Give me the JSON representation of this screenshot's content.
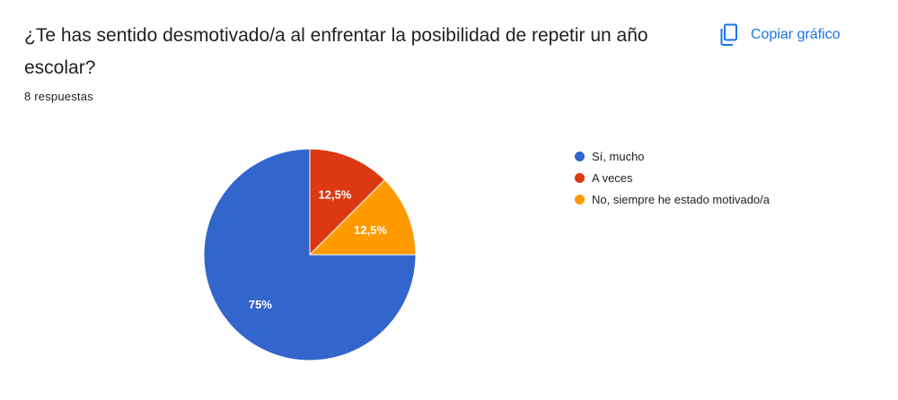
{
  "question": {
    "title": "¿Te has sentido desmotivado/a al enfrentar la posibilidad de repetir un año escolar?",
    "responses": "8 respuestas"
  },
  "toolbar": {
    "copy_label": "Copiar gráfico",
    "copy_icon": "copy-icon"
  },
  "colors": {
    "accent": "#1a73e8"
  },
  "chart_data": {
    "type": "pie",
    "categories": [
      "Sí, mucho",
      "A veces",
      "No, siempre he estado motivado/a"
    ],
    "values": [
      75,
      12.5,
      12.5
    ],
    "labels": [
      "75%",
      "12,5%",
      "12,5%"
    ],
    "colors": [
      "#3366cc",
      "#dc3912",
      "#ff9900"
    ],
    "legend_position": "right"
  }
}
